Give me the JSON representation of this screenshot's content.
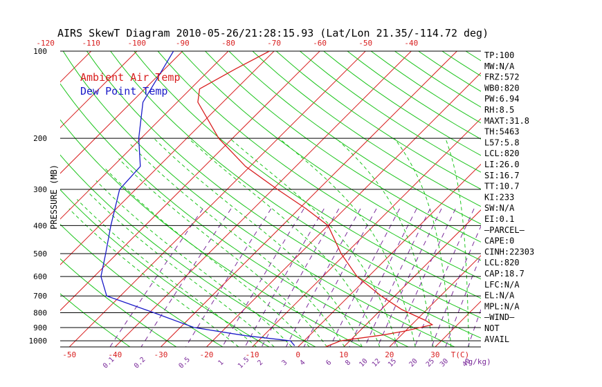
{
  "chart_data": {
    "type": "line",
    "title": "AIRS SkewT Diagram 2010-05-26/21:28:15.93 (Lat/Lon 21.35/-114.72 deg)",
    "ylabel": "PRESSURE (MB)",
    "xlabel": "T(C)",
    "mixing_ratio_unit": "(g/kg)",
    "pressure_ticks": [
      100,
      200,
      300,
      400,
      500,
      600,
      700,
      800,
      900,
      1000
    ],
    "top_temp_ticks": [
      -120,
      -110,
      -100,
      -90,
      -80,
      -70,
      -60,
      -50,
      -40
    ],
    "bottom_temp_ticks": [
      -50,
      -40,
      -30,
      -20,
      -10,
      0,
      10,
      20,
      30
    ],
    "mixing_ratio_ticks": [
      "0.1",
      "0.2",
      "0.5",
      "1",
      "1.5",
      "2",
      "3",
      "4",
      "6",
      "8",
      "10",
      "12",
      "15",
      "20",
      "25",
      "30",
      "40"
    ],
    "xlim": [
      -52,
      40
    ],
    "ylim": [
      1050,
      100
    ],
    "series": [
      {
        "name": "Ambient Air Temp",
        "color": "#d81e1e",
        "points": [
          {
            "p": 1050,
            "t": 6.0
          },
          {
            "p": 1000,
            "t": 8.0
          },
          {
            "p": 955,
            "t": 16.0
          },
          {
            "p": 925,
            "t": 20.0
          },
          {
            "p": 880,
            "t": 24.5
          },
          {
            "p": 850,
            "t": 22.0
          },
          {
            "p": 780,
            "t": 14.5
          },
          {
            "p": 700,
            "t": 7.0
          },
          {
            "p": 600,
            "t": -2.5
          },
          {
            "p": 500,
            "t": -11.0
          },
          {
            "p": 400,
            "t": -20.0
          },
          {
            "p": 350,
            "t": -28.5
          },
          {
            "p": 300,
            "t": -39.0
          },
          {
            "p": 250,
            "t": -51.0
          },
          {
            "p": 200,
            "t": -63.0
          },
          {
            "p": 150,
            "t": -75.5
          },
          {
            "p": 135,
            "t": -78.0
          },
          {
            "p": 115,
            "t": -74.5
          },
          {
            "p": 100,
            "t": -71.0
          }
        ]
      },
      {
        "name": "Dew Point Temp",
        "color": "#1a1ac8",
        "points": [
          {
            "p": 1040,
            "t": -1.0
          },
          {
            "p": 1000,
            "t": -3.0
          },
          {
            "p": 960,
            "t": -14.0
          },
          {
            "p": 900,
            "t": -27.0
          },
          {
            "p": 800,
            "t": -39.0
          },
          {
            "p": 700,
            "t": -53.0
          },
          {
            "p": 600,
            "t": -58.5
          },
          {
            "p": 500,
            "t": -62.5
          },
          {
            "p": 400,
            "t": -67.5
          },
          {
            "p": 300,
            "t": -73.5
          },
          {
            "p": 250,
            "t": -74.0
          },
          {
            "p": 200,
            "t": -80.5
          },
          {
            "p": 150,
            "t": -87.5
          },
          {
            "p": 125,
            "t": -89.5
          },
          {
            "p": 100,
            "t": -92.0
          }
        ]
      }
    ],
    "indices": [
      "TP:100",
      "MW:N/A",
      "FRZ:572",
      "WB0:820",
      "PW:6.94",
      "RH:8.5",
      "MAXT:31.8",
      "TH:5463",
      "L57:5.8",
      "LCL:820",
      "LI:26.0",
      "SI:16.7",
      "TT:10.7",
      "KI:233",
      "SW:N/A",
      "EI:0.1",
      "—PARCEL—",
      "CAPE:0",
      "CINH:22303",
      "LCL:820",
      "CAP:18.7",
      "LFC:N/A",
      "EL:N/A",
      "MPL:N/A",
      "—WIND—",
      "NOT",
      "AVAIL"
    ]
  },
  "colors": {
    "isotherm": "#d81e1e",
    "dry_adiabat": "#1bc41b",
    "moist_adiabat": "#1bc41b",
    "mixing_ratio": "#7a2a9a",
    "temperature": "#d81e1e",
    "dewpoint": "#1a1ac8",
    "isobar": "#000000",
    "text": "#000000"
  }
}
